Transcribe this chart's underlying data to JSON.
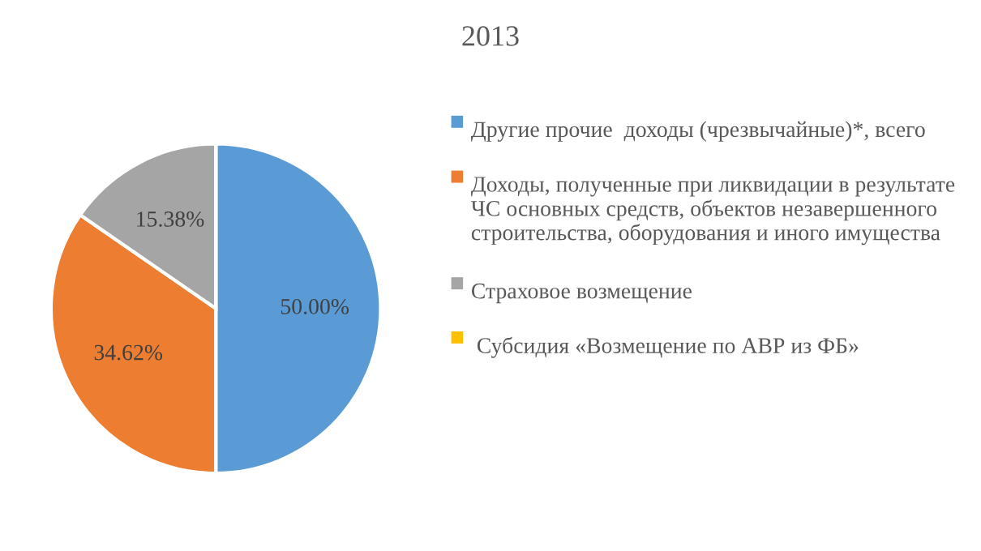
{
  "chart_data": {
    "type": "pie",
    "title": "2013",
    "categories": [
      "Другие прочие  доходы (чрезвычайные)*, всего",
      "Доходы, полученные при ликвидации в результате ЧС основных средств, объектов незавершенного строительства, оборудования и иного имущества",
      "Страховое возмещение",
      " Субсидия «Возмещение по АВР из ФБ»"
    ],
    "values": [
      50.0,
      34.62,
      15.38,
      0
    ],
    "colors": [
      "#5b9bd5",
      "#ed7d31",
      "#a5a5a5",
      "#ffc000"
    ],
    "value_labels": [
      "50.00%",
      "34.62%",
      "15.38%",
      null
    ],
    "legend": "right"
  }
}
